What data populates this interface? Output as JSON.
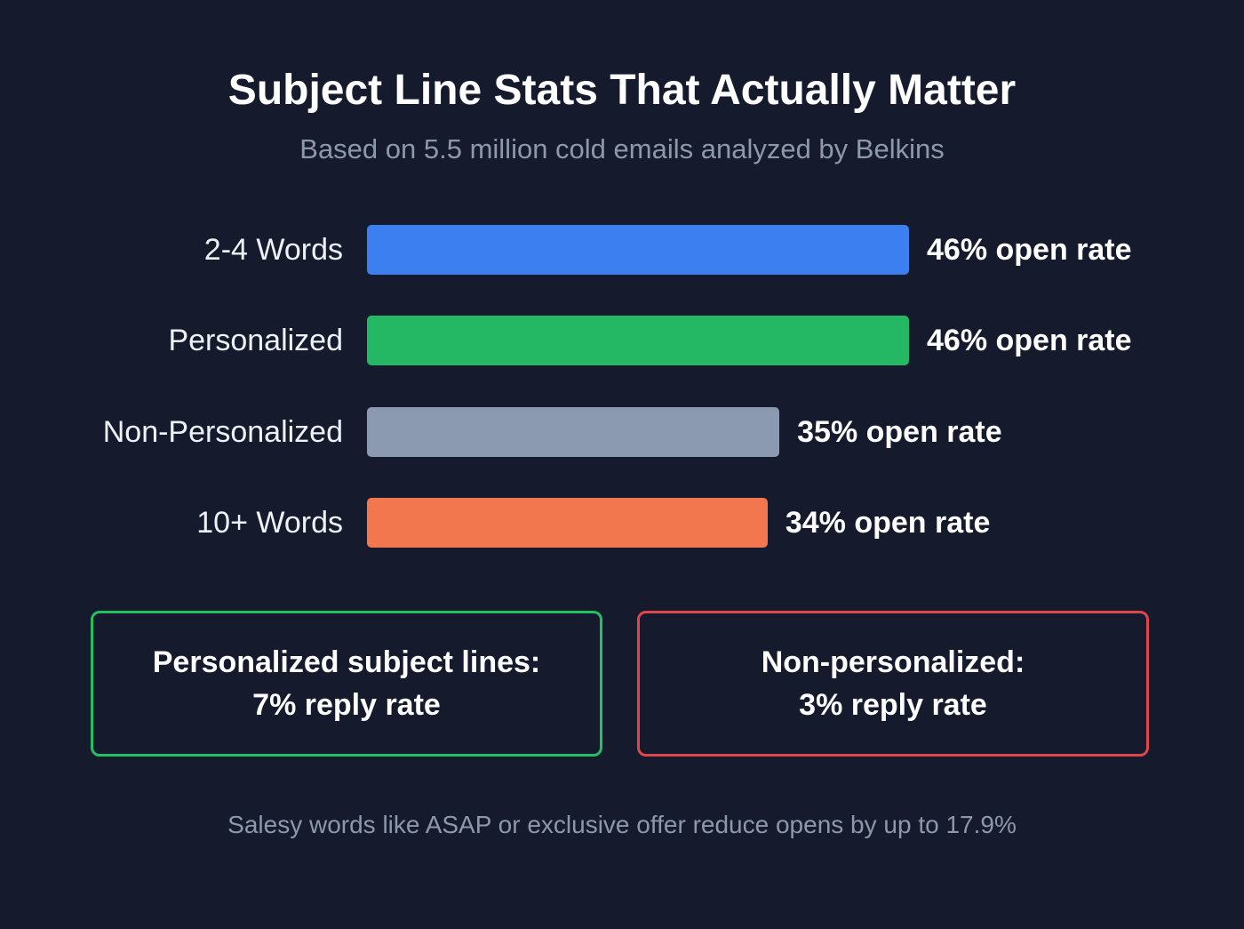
{
  "chart_data": {
    "type": "bar",
    "orientation": "horizontal",
    "title": "Subject Line Stats That Actually Matter",
    "subtitle": "Based on 5.5 million cold emails analyzed by Belkins",
    "categories": [
      "2-4 Words",
      "Personalized",
      "Non-Personalized",
      "10+ Words"
    ],
    "values": [
      46,
      46,
      35,
      34
    ],
    "value_labels": [
      "46% open rate",
      "46% open rate",
      "35% open rate",
      "34% open rate"
    ],
    "colors": [
      "#3b7ff0",
      "#25b864",
      "#8b9ab0",
      "#f2764e"
    ],
    "xlim": [
      0,
      46
    ],
    "xlabel": "",
    "ylabel": ""
  },
  "callouts": [
    {
      "line1": "Personalized subject lines:",
      "line2": "7% reply rate",
      "color": "#22c063"
    },
    {
      "line1": "Non-personalized:",
      "line2": "3% reply rate",
      "color": "#e0474d"
    }
  ],
  "footer": "Salesy words like ASAP or exclusive offer reduce opens by up to 17.9%"
}
